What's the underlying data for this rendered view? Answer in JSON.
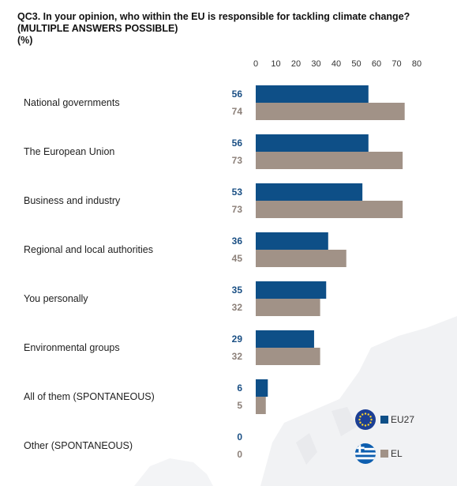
{
  "header": {
    "question": "QC3. In your opinion, who within the EU is responsible for tackling climate change?",
    "note": "(MULTIPLE ANSWERS POSSIBLE)",
    "unit": "(%)"
  },
  "colors": {
    "eu27": "#0e4f87",
    "el": "#a19287",
    "eu_label": "#1a4f84",
    "el_label": "#8c8079"
  },
  "legend": {
    "eu27": "EU27",
    "el": "EL"
  },
  "chart_data": {
    "type": "bar",
    "orientation": "horizontal",
    "title": "QC3. In your opinion, who within the EU is responsible for tackling climate change?",
    "subtitle": "(MULTIPLE ANSWERS POSSIBLE)",
    "unit": "(%)",
    "xlim": [
      0,
      80
    ],
    "x_ticks": [
      0,
      10,
      20,
      30,
      40,
      50,
      60,
      70,
      80
    ],
    "axis_position": "top",
    "grid": false,
    "legend_position": "bottom-right",
    "categories": [
      "National governments",
      "The European Union",
      "Business and industry",
      "Regional and local authorities",
      "You personally",
      "Environmental groups",
      "All of them (SPONTANEOUS)",
      "Other (SPONTANEOUS)"
    ],
    "series": [
      {
        "name": "EU27",
        "values": [
          56,
          56,
          53,
          36,
          35,
          29,
          6,
          0
        ]
      },
      {
        "name": "EL",
        "values": [
          74,
          73,
          73,
          45,
          32,
          32,
          5,
          0
        ]
      }
    ]
  }
}
